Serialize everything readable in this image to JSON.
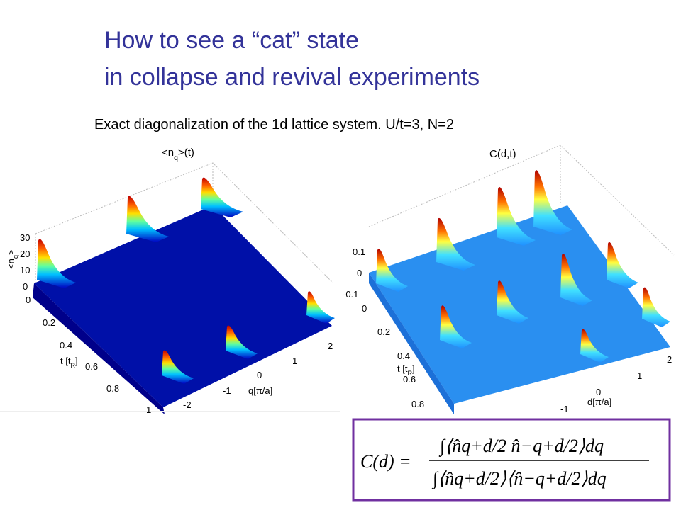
{
  "title": [
    "How to see a “cat” state",
    "in collapse and revival experiments"
  ],
  "subtitle": "Exact diagonalization of the 1d lattice system. U/t=3, N=2",
  "plots": [
    {
      "title": [
        "<n",
        "q",
        ">(t)"
      ],
      "z_label": [
        "<n",
        "q",
        ">"
      ],
      "z_ticks": [
        "30",
        "20",
        "10",
        "0"
      ],
      "t_ticks": [
        "0",
        "0.2",
        "0.4",
        "0.6",
        "0.8",
        "1"
      ],
      "t_label": [
        "t [t",
        "R",
        "]"
      ],
      "x_ticks": [
        "-2",
        "-1",
        "0",
        "1",
        "2"
      ],
      "x_label": "q[π/a]"
    },
    {
      "title": [
        "C(d,t)"
      ],
      "z_ticks": [
        "0.1",
        "0",
        "-0.1"
      ],
      "t_ticks": [
        "0",
        "0.2",
        "0.4",
        "0.6",
        "0.8"
      ],
      "t_label": [
        "t [t",
        "R",
        "]"
      ],
      "x_ticks": [
        "-1",
        "0",
        "1",
        "2"
      ],
      "x_label": "d[π/a]"
    }
  ],
  "formula": {
    "lhs": "C(d) =",
    "numerator": "∫⟨n̂q+d/2 n̂−q+d/2⟩dq",
    "denominator": "∫⟨n̂q+d/2⟩⟨n̂−q+d/2⟩dq"
  }
}
